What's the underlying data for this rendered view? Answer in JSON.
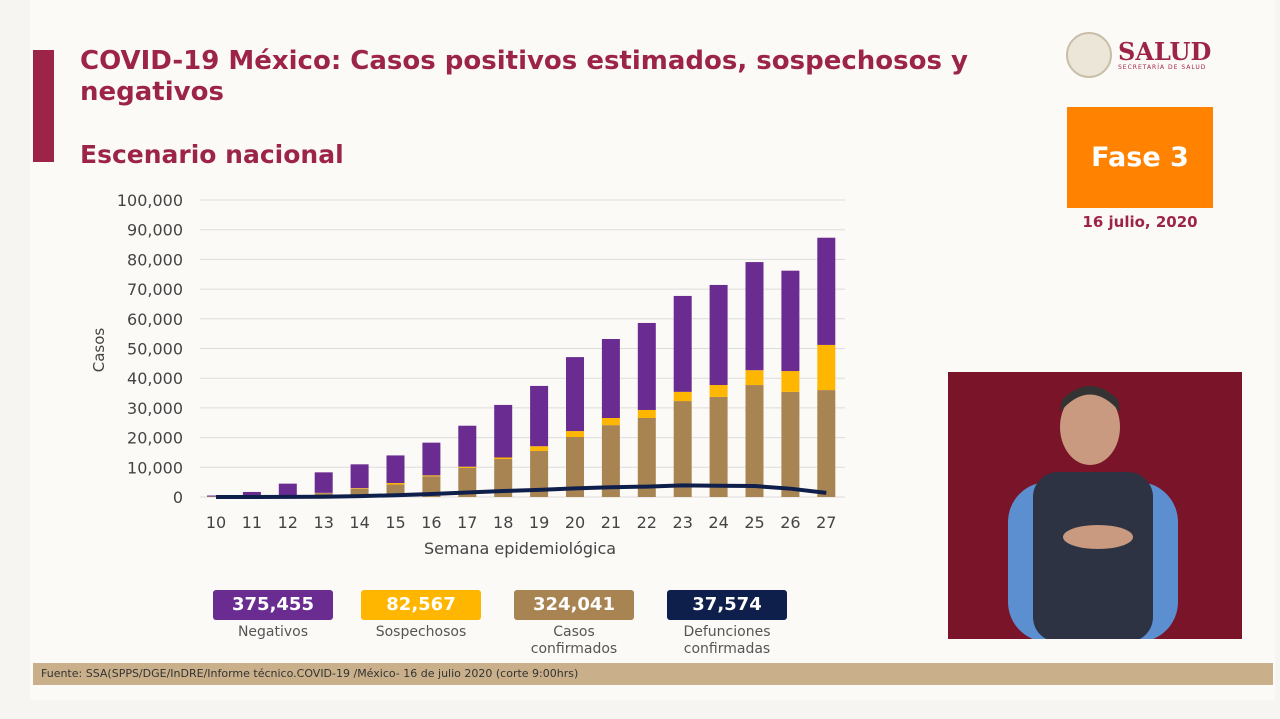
{
  "header": {
    "title": "COVID-19 México: Casos positivos estimados, sospechosos y negativos",
    "subtitle": "Escenario nacional"
  },
  "logo": {
    "text": "SALUD",
    "subtext": "SECRETARÍA DE SALUD"
  },
  "phase": {
    "label": "Fase 3",
    "date": "16 julio, 2020",
    "color": "#ff8200"
  },
  "totals": [
    {
      "value": "375,455",
      "label": "Negativos",
      "color": "#6a2c91"
    },
    {
      "value": "82,567",
      "label": "Sospechosos",
      "color": "#ffb600"
    },
    {
      "value": "324,041",
      "label": "Casos confirmados",
      "color": "#a88452"
    },
    {
      "value": "37,574",
      "label": "Defunciones confirmadas",
      "color": "#0f1f4b"
    }
  ],
  "footer": "Fuente: SSA(SPPS/DGE/InDRE/Informe técnico.COVID-19 /México- 16 de julio 2020 (corte 9:00hrs)",
  "chart_data": {
    "type": "bar",
    "stacked": true,
    "xlabel": "Semana epidemiológica",
    "ylabel": "Casos",
    "ylim": [
      0,
      100000
    ],
    "yticks": [
      "0",
      "10,000",
      "20,000",
      "30,000",
      "40,000",
      "50,000",
      "60,000",
      "70,000",
      "80,000",
      "90,000",
      "100,000"
    ],
    "grid": true,
    "categories": [
      "10",
      "11",
      "12",
      "13",
      "14",
      "15",
      "16",
      "17",
      "18",
      "19",
      "20",
      "21",
      "22",
      "23",
      "24",
      "25",
      "26",
      "27"
    ],
    "series": [
      {
        "key": "confirmados",
        "color": "#a88452",
        "values": [
          200,
          300,
          500,
          1300,
          2800,
          4200,
          7000,
          9800,
          12800,
          15500,
          20200,
          24200,
          26600,
          32300,
          33700,
          37700,
          35400,
          36000
        ]
      },
      {
        "key": "sospechosos",
        "color": "#ffb600",
        "values": [
          0,
          0,
          0,
          100,
          200,
          500,
          300,
          400,
          500,
          1600,
          2000,
          2400,
          2700,
          3100,
          4000,
          5000,
          7000,
          15200
        ]
      },
      {
        "key": "negativos",
        "color": "#6a2c91",
        "values": [
          300,
          1400,
          4000,
          6900,
          8000,
          9300,
          11000,
          13800,
          17700,
          20300,
          24900,
          26600,
          29300,
          32300,
          33700,
          36400,
          33800,
          36100
        ]
      },
      {
        "key": "defunciones",
        "type": "line",
        "color": "#0f1f4b",
        "values": [
          0,
          10,
          30,
          100,
          300,
          600,
          1000,
          1500,
          2000,
          2400,
          2900,
          3300,
          3500,
          3900,
          3800,
          3700,
          2800,
          1400
        ]
      }
    ]
  }
}
